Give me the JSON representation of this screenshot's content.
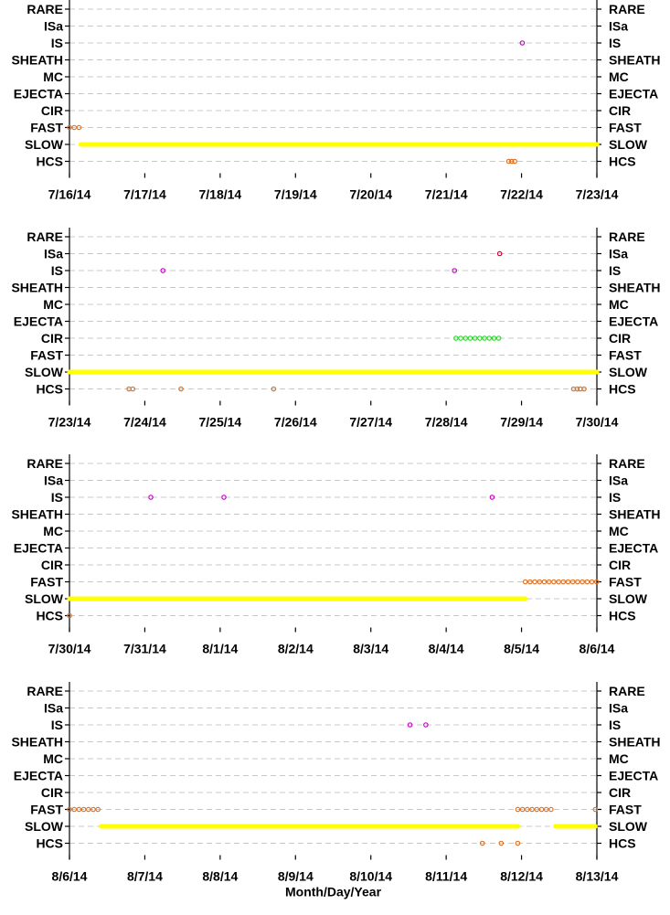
{
  "colors": {
    "background": "#ffffff",
    "axis": "#000000",
    "grid": "#c8c8c8",
    "SLOW": "#ffff00",
    "FAST": "#e07020",
    "HCS": "#e07020",
    "CIR": "#22dd22",
    "IS": "#cc00cc",
    "ISa": "#cc0033"
  },
  "chart_data": [
    {
      "type": "scatter",
      "categories": [
        "RARE",
        "ISa",
        "IS",
        "SHEATH",
        "MC",
        "EJECTA",
        "CIR",
        "FAST",
        "SLOW",
        "HCS"
      ],
      "x_ticks": [
        "7/16/14",
        "7/17/14",
        "7/18/14",
        "7/19/14",
        "7/20/14",
        "7/21/14",
        "7/22/14",
        "7/23/14"
      ],
      "xlim": [
        0,
        7
      ],
      "xlabel": "",
      "grid": true,
      "series": [
        {
          "category": "SLOW",
          "segments": [
            [
              0.15,
              7.0
            ]
          ]
        },
        {
          "category": "FAST",
          "segments": [
            [
              0.0,
              0.15
            ]
          ]
        },
        {
          "category": "IS",
          "points": [
            6.01
          ]
        },
        {
          "category": "HCS",
          "points": [
            5.83,
            5.87,
            5.91
          ]
        }
      ]
    },
    {
      "type": "scatter",
      "categories": [
        "RARE",
        "ISa",
        "IS",
        "SHEATH",
        "MC",
        "EJECTA",
        "CIR",
        "FAST",
        "SLOW",
        "HCS"
      ],
      "x_ticks": [
        "7/23/14",
        "7/24/14",
        "7/25/14",
        "7/26/14",
        "7/27/14",
        "7/28/14",
        "7/29/14",
        "7/30/14"
      ],
      "xlim": [
        0,
        7
      ],
      "xlabel": "",
      "grid": true,
      "series": [
        {
          "category": "SLOW",
          "segments": [
            [
              0.0,
              7.0
            ]
          ]
        },
        {
          "category": "CIR",
          "segments": [
            [
              5.13,
              5.72
            ]
          ]
        },
        {
          "category": "IS",
          "points": [
            1.24,
            5.11
          ]
        },
        {
          "category": "ISa",
          "points": [
            5.71
          ]
        },
        {
          "category": "HCS",
          "points": [
            0.79,
            0.84,
            1.48,
            2.71,
            6.69,
            6.74,
            6.78,
            6.83
          ]
        }
      ]
    },
    {
      "type": "scatter",
      "categories": [
        "RARE",
        "ISa",
        "IS",
        "SHEATH",
        "MC",
        "EJECTA",
        "CIR",
        "FAST",
        "SLOW",
        "HCS"
      ],
      "x_ticks": [
        "7/30/14",
        "7/31/14",
        "8/1/14",
        "8/2/14",
        "8/3/14",
        "8/4/14",
        "8/5/14",
        "8/6/14"
      ],
      "xlim": [
        0,
        7
      ],
      "xlabel": "",
      "grid": true,
      "series": [
        {
          "category": "SLOW",
          "segments": [
            [
              0.0,
              6.05
            ]
          ]
        },
        {
          "category": "FAST",
          "segments": [
            [
              6.05,
              7.0
            ]
          ]
        },
        {
          "category": "IS",
          "points": [
            1.08,
            2.05,
            5.61
          ]
        },
        {
          "category": "HCS",
          "points": [
            0.0
          ]
        }
      ]
    },
    {
      "type": "scatter",
      "categories": [
        "RARE",
        "ISa",
        "IS",
        "SHEATH",
        "MC",
        "EJECTA",
        "CIR",
        "FAST",
        "SLOW",
        "HCS"
      ],
      "x_ticks": [
        "8/6/14",
        "8/7/14",
        "8/8/14",
        "8/9/14",
        "8/10/14",
        "8/11/14",
        "8/12/14",
        "8/13/14"
      ],
      "xlim": [
        0,
        7
      ],
      "xlabel": "Month/Day/Year",
      "grid": true,
      "series": [
        {
          "category": "SLOW",
          "segments": [
            [
              0.42,
              5.95
            ],
            [
              6.45,
              6.98
            ]
          ]
        },
        {
          "category": "FAST",
          "segments": [
            [
              0.0,
              0.42
            ],
            [
              5.95,
              6.45
            ],
            [
              6.98,
              7.0
            ]
          ]
        },
        {
          "category": "IS",
          "points": [
            4.52,
            4.73
          ]
        },
        {
          "category": "HCS",
          "points": [
            5.48,
            5.73,
            5.95
          ]
        }
      ]
    }
  ]
}
